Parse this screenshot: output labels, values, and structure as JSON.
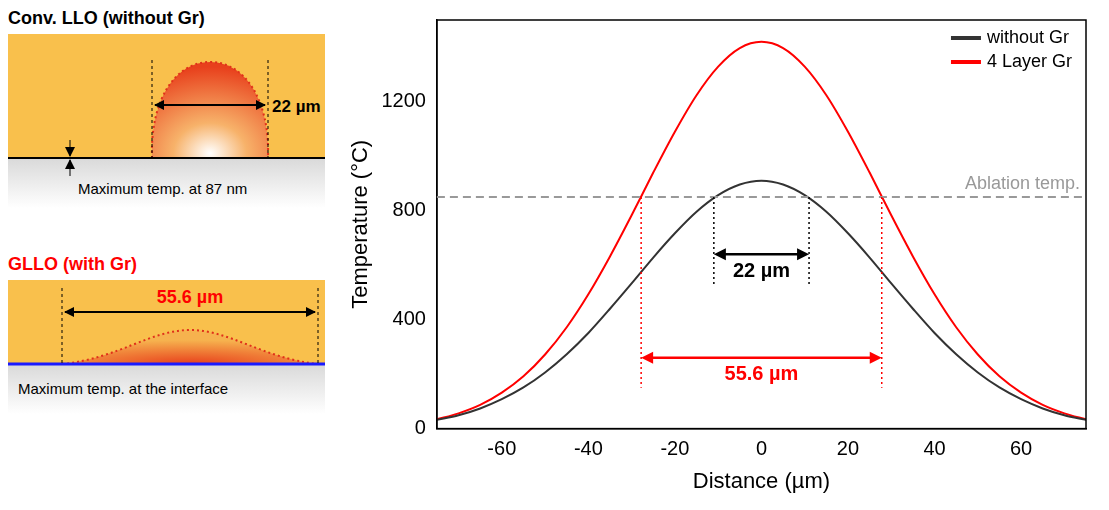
{
  "chart_data": {
    "type": "line",
    "xlabel": "Distance (µm)",
    "ylabel": "Temperature (°C)",
    "x": [
      -75,
      -70,
      -65,
      -60,
      -55,
      -50,
      -45,
      -40,
      -35,
      -30,
      -25,
      -20,
      -15,
      -10,
      -5,
      0,
      5,
      10,
      15,
      20,
      25,
      30,
      35,
      40,
      45,
      50,
      55,
      60,
      65,
      70,
      75
    ],
    "xlim": [
      -75,
      75
    ],
    "xticks": [
      -60,
      -40,
      -20,
      0,
      20,
      40,
      60
    ],
    "ylim": [
      0,
      1500
    ],
    "yticks": [
      0,
      400,
      800,
      1200
    ],
    "grid": false,
    "legend": "upper right",
    "series": [
      {
        "name": "without Gr",
        "color": "#333333",
        "line_style": "solid",
        "values": [
          32,
          49,
          74,
          108,
          151,
          206,
          273,
          351,
          440,
          533,
          628,
          717,
          796,
          857,
          896,
          910,
          896,
          857,
          796,
          717,
          628,
          533,
          440,
          351,
          273,
          206,
          151,
          108,
          74,
          49,
          32
        ]
      },
      {
        "name": "4 Layer Gr",
        "color": "#ff0000",
        "line_style": "solid",
        "values": [
          34,
          56,
          87,
          132,
          192,
          272,
          372,
          493,
          632,
          783,
          940,
          1090,
          1224,
          1329,
          1397,
          1420,
          1397,
          1329,
          1224,
          1090,
          940,
          783,
          632,
          493,
          372,
          272,
          192,
          132,
          87,
          56,
          34
        ]
      }
    ],
    "reference_line": {
      "label": "Ablation temp.",
      "y": 850,
      "color": "#999999",
      "line_style": "dashed"
    },
    "annotations": [
      {
        "text": "22 µm",
        "x_from": -11,
        "x_to": 11,
        "y": 640,
        "color": "#000000"
      },
      {
        "text": "55.6 µm",
        "x_from": -27.8,
        "x_to": 27.8,
        "y": 260,
        "color": "#ff0000"
      }
    ]
  },
  "diagrams": [
    {
      "title": "Conv. LLO (without Gr)",
      "title_color": "#000000",
      "width_label": "22 µm",
      "width_label_color": "#000000",
      "note": "Maximum temp. at 87 nm",
      "interface_color": "#000000"
    },
    {
      "title": "GLLO (with Gr)",
      "title_color": "#ff0000",
      "width_label": "55.6 µm",
      "width_label_color": "#ff0000",
      "note": "Maximum temp. at the interface",
      "interface_color": "#1a1aff"
    }
  ]
}
